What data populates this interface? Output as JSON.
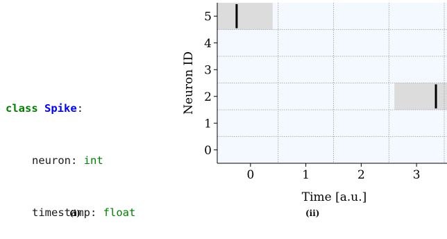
{
  "code": {
    "keyword": "class",
    "class_name": "Spike",
    "colon": ":",
    "fields": [
      {
        "name": "neuron",
        "sep": ": ",
        "type": "int"
      },
      {
        "name": "timestamp",
        "sep": ": ",
        "type": "float"
      }
    ]
  },
  "panel_labels": {
    "left": "(i)",
    "right": "(ii)"
  },
  "chart_data": {
    "type": "scatter",
    "xlabel": "Time [a.u.]",
    "ylabel": "Neuron ID",
    "x_ticks": [
      "0",
      "1",
      "2",
      "3"
    ],
    "y_ticks": [
      "0",
      "1",
      "2",
      "3",
      "4",
      "5"
    ],
    "xlim": [
      -0.6,
      3.55
    ],
    "ylim": [
      -0.5,
      5.5
    ],
    "grid": true,
    "plot_background": "#f4f8ff",
    "highlight_color": "#dcdcdc",
    "spike_color": "#000000",
    "highlights": [
      {
        "neuron": 5,
        "x_start": -0.6,
        "x_end": 0.4
      },
      {
        "neuron": 2,
        "x_start": 2.6,
        "x_end": 3.55
      }
    ],
    "spikes": [
      {
        "neuron": 5,
        "timestamp": -0.25
      },
      {
        "neuron": 2,
        "timestamp": 3.35
      }
    ]
  }
}
